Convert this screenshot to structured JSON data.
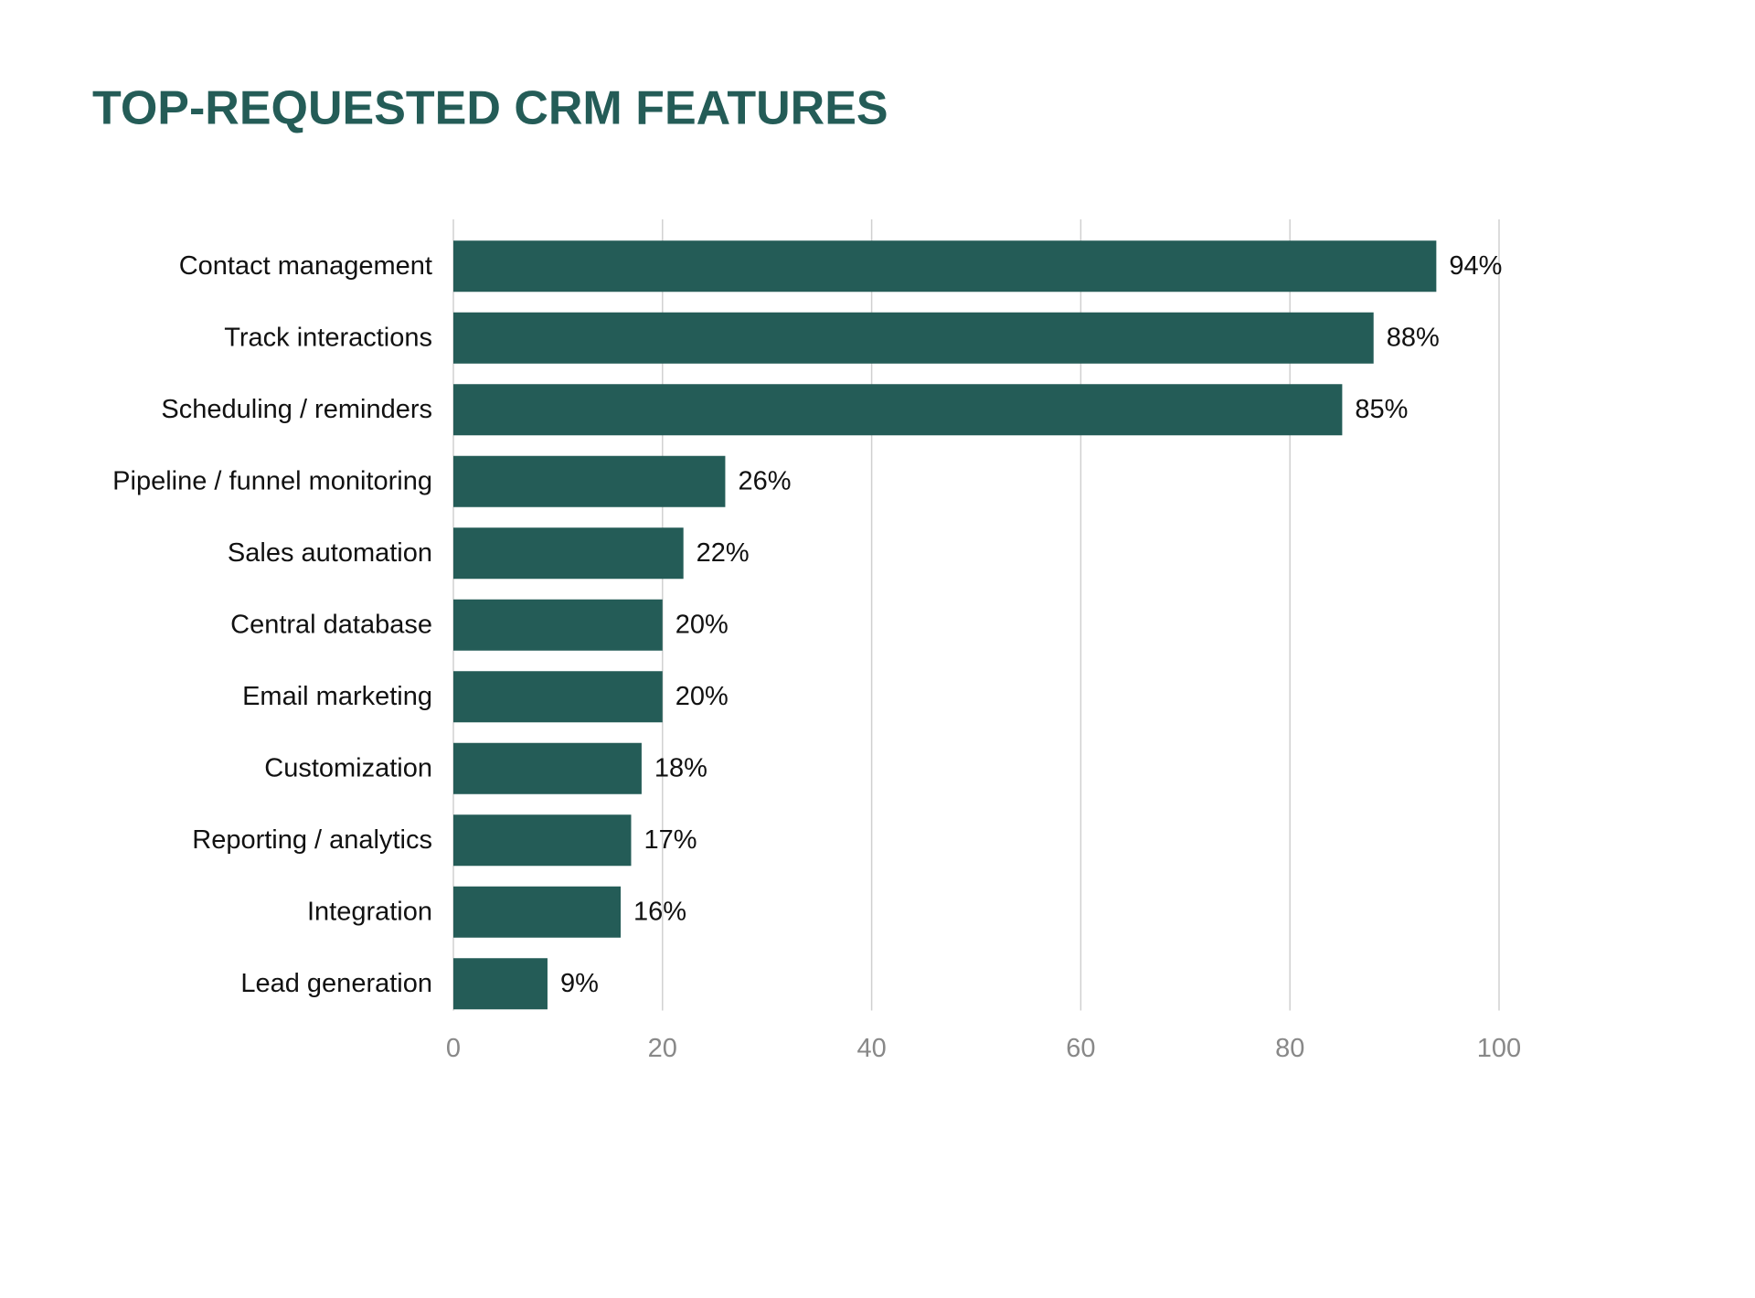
{
  "chart_data": {
    "type": "bar",
    "orientation": "horizontal",
    "title": "TOP-REQUESTED CRM FEATURES",
    "categories": [
      "Contact management",
      "Track interactions",
      "Scheduling / reminders",
      "Pipeline / funnel monitoring",
      "Sales automation",
      "Central database",
      "Email marketing",
      "Customization",
      "Reporting / analytics",
      "Integration",
      "Lead generation"
    ],
    "values": [
      94,
      88,
      85,
      26,
      22,
      20,
      20,
      18,
      17,
      16,
      9
    ],
    "value_labels": [
      "94%",
      "88%",
      "85%",
      "26%",
      "22%",
      "20%",
      "20%",
      "18%",
      "17%",
      "16%",
      "9%"
    ],
    "color": "#245c57",
    "xlim": [
      0,
      100
    ],
    "xticks": [
      0,
      20,
      40,
      60,
      80,
      100
    ],
    "grid": true
  }
}
